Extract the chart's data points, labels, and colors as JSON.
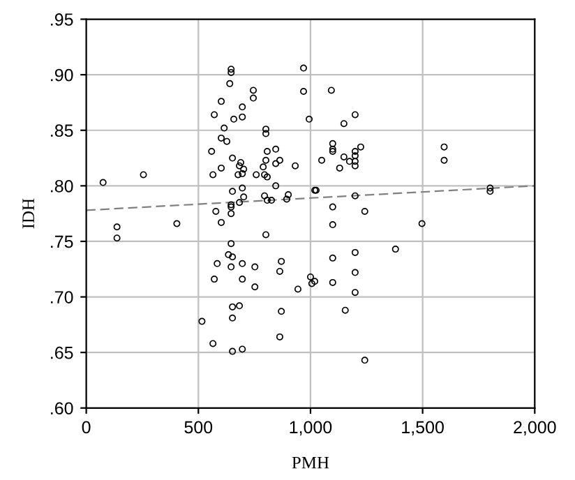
{
  "chart_data": {
    "type": "scatter",
    "xlabel": "PMH",
    "ylabel": "IDH",
    "xlim": [
      0,
      2000
    ],
    "ylim": [
      0.6,
      0.95
    ],
    "xticks": [
      0,
      500,
      {
        "value": 1000,
        "label": "1,000"
      },
      {
        "value": 1500,
        "label": "1,500"
      },
      {
        "value": 2000,
        "label": "2,000"
      }
    ],
    "yticks": [
      {
        "value": 0.6,
        "label": ".60"
      },
      {
        "value": 0.65,
        "label": ".65"
      },
      {
        "value": 0.7,
        "label": ".70"
      },
      {
        "value": 0.75,
        "label": ".75"
      },
      {
        "value": 0.8,
        "label": ".80"
      },
      {
        "value": 0.85,
        "label": ".85"
      },
      {
        "value": 0.9,
        "label": ".90"
      },
      {
        "value": 0.95,
        "label": ".95"
      }
    ],
    "grid": true,
    "marker": "circle",
    "series": [
      {
        "color": "#000000",
        "x": [
          646,
          646,
          969,
          640,
          745,
          745,
          969,
          602,
          696,
          696,
          571,
          658,
          994,
          615,
          801,
          801,
          602,
          627,
          559,
          807,
          845,
          652,
          801,
          863,
          689,
          845,
          932,
          683,
          789,
          602,
          702,
          696,
          758,
          677,
          795,
          807,
          565,
          75,
          255,
          845,
          696,
          652,
          1025,
          901,
          795,
          807,
          826,
          894,
          702,
          683,
          646,
          646,
          578,
          646,
          1093,
          1199,
          1149,
          1099,
          1099,
          1099,
          1224,
          1199,
          1199,
          1149,
          1174,
          1199,
          1199,
          1050,
          1130,
          1596,
          1596,
          1801,
          1801,
          1019,
          1199,
          1099,
          1242,
          137,
          137,
          404,
          602,
          801,
          646,
          634,
          652,
          584,
          646,
          696,
          752,
          870,
          863,
          571,
          696,
          752,
          944,
          1000,
          1019,
          1006,
          652,
          683,
          652,
          870,
          516,
          863,
          565,
          652,
          696,
          1099,
          1497,
          1379,
          1099,
          1199,
          1199,
          1099,
          1199,
          1155,
          1242
        ],
        "values": [
          0.905,
          0.902,
          0.906,
          0.892,
          0.886,
          0.879,
          0.885,
          0.876,
          0.871,
          0.862,
          0.864,
          0.86,
          0.86,
          0.852,
          0.851,
          0.847,
          0.843,
          0.84,
          0.831,
          0.831,
          0.833,
          0.825,
          0.823,
          0.823,
          0.821,
          0.82,
          0.818,
          0.818,
          0.817,
          0.816,
          0.815,
          0.811,
          0.81,
          0.81,
          0.81,
          0.808,
          0.81,
          0.803,
          0.81,
          0.8,
          0.798,
          0.795,
          0.796,
          0.792,
          0.791,
          0.787,
          0.787,
          0.788,
          0.79,
          0.785,
          0.783,
          0.781,
          0.777,
          0.775,
          0.886,
          0.864,
          0.856,
          0.838,
          0.833,
          0.831,
          0.835,
          0.831,
          0.827,
          0.826,
          0.822,
          0.822,
          0.818,
          0.823,
          0.816,
          0.835,
          0.823,
          0.798,
          0.795,
          0.796,
          0.791,
          0.781,
          0.777,
          0.763,
          0.753,
          0.766,
          0.767,
          0.756,
          0.748,
          0.738,
          0.736,
          0.73,
          0.727,
          0.73,
          0.727,
          0.732,
          0.723,
          0.716,
          0.716,
          0.709,
          0.707,
          0.718,
          0.714,
          0.712,
          0.691,
          0.692,
          0.681,
          0.687,
          0.678,
          0.664,
          0.658,
          0.651,
          0.653,
          0.765,
          0.766,
          0.743,
          0.735,
          0.74,
          0.722,
          0.713,
          0.704,
          0.688,
          0.643
        ]
      },
      {
        "type": "line",
        "color": "#808080",
        "line_style": "dashed",
        "marker": "none",
        "x": [
          0,
          2000
        ],
        "values": [
          0.778,
          0.8
        ]
      }
    ]
  }
}
